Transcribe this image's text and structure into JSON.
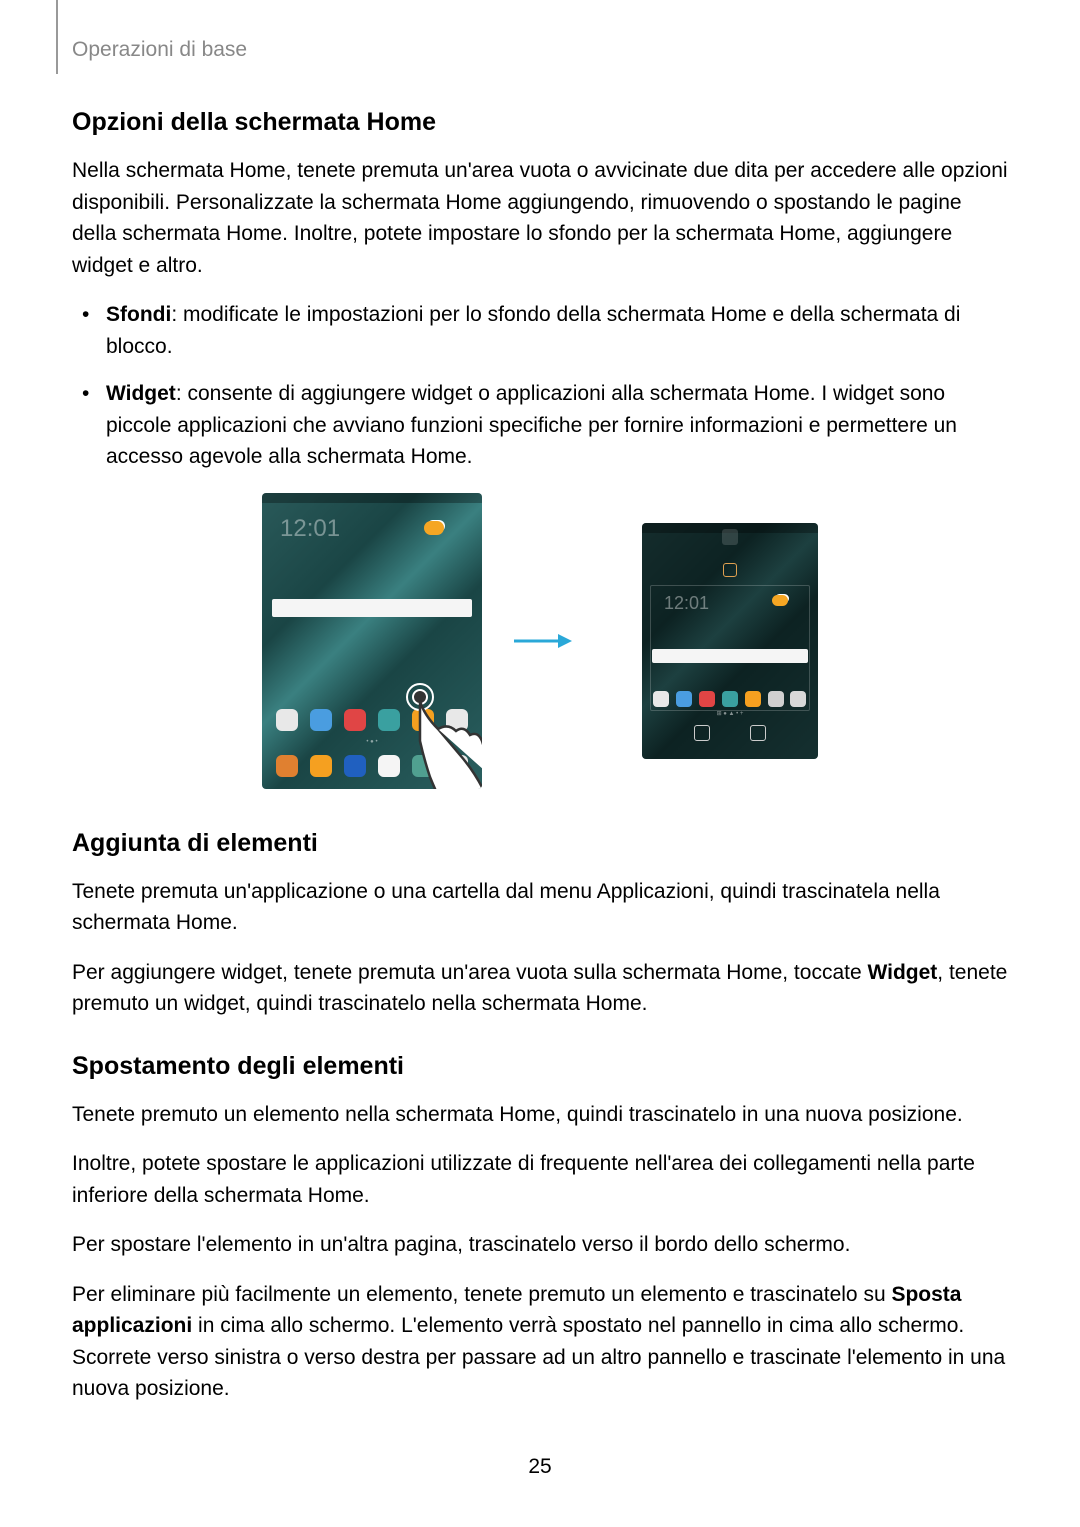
{
  "breadcrumb": "Operazioni di base",
  "section1": {
    "title": "Opzioni della schermata Home",
    "intro": "Nella schermata Home, tenete premuta un'area vuota o avvicinate due dita per accedere alle opzioni disponibili. Personalizzate la schermata Home aggiungendo, rimuovendo o spostando le pagine della schermata Home. Inoltre, potete impostare lo sfondo per la schermata Home, aggiungere widget e altro.",
    "bullet1_bold": "Sfondi",
    "bullet1_rest": ": modificate le impostazioni per lo sfondo della schermata Home e della schermata di blocco.",
    "bullet2_bold": "Widget",
    "bullet2_rest": ": consente di aggiungere widget o applicazioni alla schermata Home. I widget sono piccole applicazioni che avviano funzioni specifiche per fornire informazioni e permettere un accesso agevole alla schermata Home."
  },
  "figure": {
    "clock": "12:01",
    "dock_colors": [
      "#e8e8e8",
      "#4a9de0",
      "#e04545",
      "#3aa0a0",
      "#f5a020",
      "#e8e8e8"
    ],
    "bottom_colors": [
      "#e08030",
      "#f5a020",
      "#2060c0",
      "#f5f5f5",
      "#50a090",
      "#e8e8e8"
    ],
    "right_dock_colors": [
      "#e8e8e8",
      "#4a9de0",
      "#e04545",
      "#3aa0a0",
      "#f5a020",
      "#d0d0d0",
      "#d8d8d8"
    ],
    "arrow_color": "#2aa8d8"
  },
  "section2": {
    "title": "Aggiunta di elementi",
    "p1": "Tenete premuta un'applicazione o una cartella dal menu Applicazioni, quindi trascinatela nella schermata Home.",
    "p2_pre": "Per aggiungere widget, tenete premuta un'area vuota sulla schermata Home, toccate ",
    "p2_bold": "Widget",
    "p2_post": ", tenete premuto un widget, quindi trascinatelo nella schermata Home."
  },
  "section3": {
    "title": "Spostamento degli elementi",
    "p1": "Tenete premuto un elemento nella schermata Home, quindi trascinatelo in una nuova posizione.",
    "p2": "Inoltre, potete spostare le applicazioni utilizzate di frequente nell'area dei collegamenti nella parte inferiore della schermata Home.",
    "p3": "Per spostare l'elemento in un'altra pagina, trascinatelo verso il bordo dello schermo.",
    "p4_pre": "Per eliminare più facilmente un elemento, tenete premuto un elemento e trascinatelo su ",
    "p4_bold": "Sposta applicazioni",
    "p4_post": " in cima allo schermo. L'elemento verrà spostato nel pannello in cima allo schermo. Scorrete verso sinistra o verso destra per passare ad un altro pannello e trascinate l'elemento in una nuova posizione."
  },
  "page_number": "25"
}
